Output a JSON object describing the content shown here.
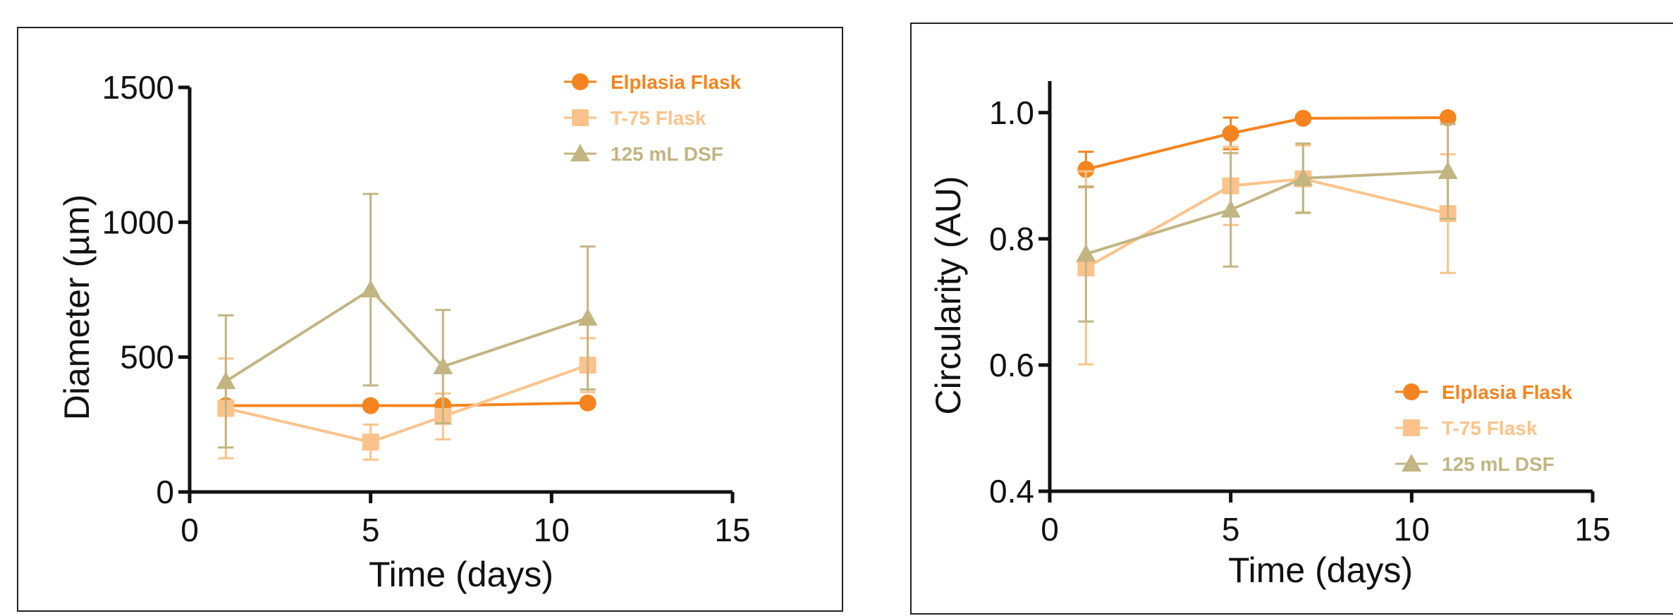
{
  "colors": {
    "elplasia": "#f5841f",
    "t75": "#fbc38b",
    "dsf": "#c2b582",
    "axis": "#111111"
  },
  "legend_labels": [
    "Elplasia Flask",
    "T-75 Flask",
    "125 mL DSF"
  ],
  "chart_data": [
    {
      "type": "line",
      "xlabel": "Time (days)",
      "ylabel": "Diameter (µm)",
      "xlim": [
        0,
        15
      ],
      "ylim": [
        0,
        1500
      ],
      "xticks": [
        0,
        5,
        10,
        15
      ],
      "yticks": [
        0,
        500,
        1000,
        1500
      ],
      "grid": false,
      "legend_position": "top-right",
      "series": [
        {
          "name": "Elplasia Flask",
          "marker": "circle",
          "color": "#f5841f",
          "x": [
            1,
            5,
            7,
            11
          ],
          "y": [
            320,
            320,
            320,
            330
          ],
          "err": [
            0,
            0,
            0,
            0
          ]
        },
        {
          "name": "T-75 Flask",
          "marker": "square",
          "color": "#fbc38b",
          "x": [
            1,
            5,
            7,
            11
          ],
          "y": [
            310,
            185,
            280,
            470
          ],
          "err": [
            185,
            65,
            85,
            100
          ]
        },
        {
          "name": "125 mL DSF",
          "marker": "triangle",
          "color": "#c2b582",
          "x": [
            1,
            5,
            7,
            11
          ],
          "y": [
            410,
            750,
            465,
            645
          ],
          "err": [
            245,
            355,
            210,
            265
          ]
        }
      ]
    },
    {
      "type": "line",
      "xlabel": "Time (days)",
      "ylabel": "Circularity (AU)",
      "xlim": [
        0,
        15
      ],
      "ylim": [
        0.4,
        1.05
      ],
      "xticks": [
        0,
        5,
        10,
        15
      ],
      "yticks": [
        0.4,
        0.6,
        0.8,
        1.0
      ],
      "grid": false,
      "legend_position": "bottom-right",
      "series": [
        {
          "name": "Elplasia Flask",
          "marker": "circle",
          "color": "#f5841f",
          "x": [
            1,
            5,
            7,
            11
          ],
          "y": [
            0.91,
            0.967,
            0.991,
            0.992
          ],
          "err": [
            0.028,
            0.025,
            0,
            0
          ]
        },
        {
          "name": "T-75 Flask",
          "marker": "square",
          "color": "#fbc38b",
          "x": [
            1,
            5,
            7,
            11
          ],
          "y": [
            0.754,
            0.884,
            0.895,
            0.84
          ],
          "err": [
            0.153,
            0.062,
            0.053,
            0.094
          ]
        },
        {
          "name": "125 mL DSF",
          "marker": "triangle",
          "color": "#c2b582",
          "x": [
            1,
            5,
            7,
            11
          ],
          "y": [
            0.776,
            0.846,
            0.896,
            0.907
          ],
          "err": [
            0.107,
            0.09,
            0.055,
            0.075
          ]
        }
      ]
    }
  ]
}
